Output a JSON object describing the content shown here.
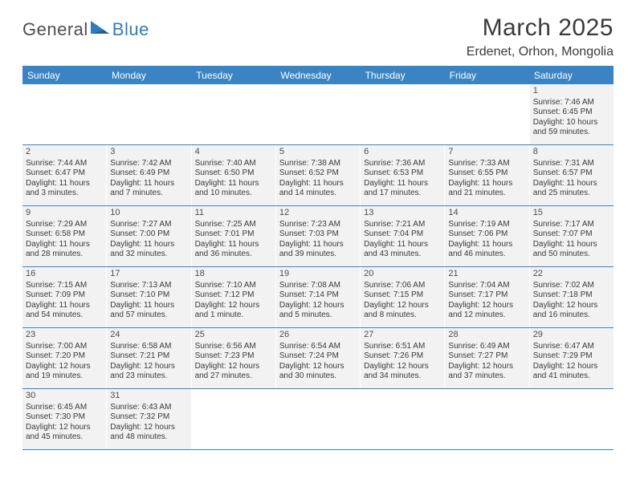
{
  "logo": {
    "text1": "General",
    "text2": "Blue"
  },
  "title": "March 2025",
  "location": "Erdenet, Orhon, Mongolia",
  "days_of_week": [
    "Sunday",
    "Monday",
    "Tuesday",
    "Wednesday",
    "Thursday",
    "Friday",
    "Saturday"
  ],
  "colors": {
    "header_bg": "#3b84c4",
    "header_text": "#ffffff",
    "cell_bg": "#f2f2f2",
    "divider": "#3b84c4",
    "text": "#3a3a3a",
    "logo_gray": "#4d4d4d",
    "logo_blue": "#2f7bbf"
  },
  "weeks": [
    [
      {
        "empty": true
      },
      {
        "empty": true
      },
      {
        "empty": true
      },
      {
        "empty": true
      },
      {
        "empty": true
      },
      {
        "empty": true
      },
      {
        "num": "1",
        "sunrise": "Sunrise: 7:46 AM",
        "sunset": "Sunset: 6:45 PM",
        "daylight": "Daylight: 10 hours and 59 minutes."
      }
    ],
    [
      {
        "num": "2",
        "sunrise": "Sunrise: 7:44 AM",
        "sunset": "Sunset: 6:47 PM",
        "daylight": "Daylight: 11 hours and 3 minutes."
      },
      {
        "num": "3",
        "sunrise": "Sunrise: 7:42 AM",
        "sunset": "Sunset: 6:49 PM",
        "daylight": "Daylight: 11 hours and 7 minutes."
      },
      {
        "num": "4",
        "sunrise": "Sunrise: 7:40 AM",
        "sunset": "Sunset: 6:50 PM",
        "daylight": "Daylight: 11 hours and 10 minutes."
      },
      {
        "num": "5",
        "sunrise": "Sunrise: 7:38 AM",
        "sunset": "Sunset: 6:52 PM",
        "daylight": "Daylight: 11 hours and 14 minutes."
      },
      {
        "num": "6",
        "sunrise": "Sunrise: 7:36 AM",
        "sunset": "Sunset: 6:53 PM",
        "daylight": "Daylight: 11 hours and 17 minutes."
      },
      {
        "num": "7",
        "sunrise": "Sunrise: 7:33 AM",
        "sunset": "Sunset: 6:55 PM",
        "daylight": "Daylight: 11 hours and 21 minutes."
      },
      {
        "num": "8",
        "sunrise": "Sunrise: 7:31 AM",
        "sunset": "Sunset: 6:57 PM",
        "daylight": "Daylight: 11 hours and 25 minutes."
      }
    ],
    [
      {
        "num": "9",
        "sunrise": "Sunrise: 7:29 AM",
        "sunset": "Sunset: 6:58 PM",
        "daylight": "Daylight: 11 hours and 28 minutes."
      },
      {
        "num": "10",
        "sunrise": "Sunrise: 7:27 AM",
        "sunset": "Sunset: 7:00 PM",
        "daylight": "Daylight: 11 hours and 32 minutes."
      },
      {
        "num": "11",
        "sunrise": "Sunrise: 7:25 AM",
        "sunset": "Sunset: 7:01 PM",
        "daylight": "Daylight: 11 hours and 36 minutes."
      },
      {
        "num": "12",
        "sunrise": "Sunrise: 7:23 AM",
        "sunset": "Sunset: 7:03 PM",
        "daylight": "Daylight: 11 hours and 39 minutes."
      },
      {
        "num": "13",
        "sunrise": "Sunrise: 7:21 AM",
        "sunset": "Sunset: 7:04 PM",
        "daylight": "Daylight: 11 hours and 43 minutes."
      },
      {
        "num": "14",
        "sunrise": "Sunrise: 7:19 AM",
        "sunset": "Sunset: 7:06 PM",
        "daylight": "Daylight: 11 hours and 46 minutes."
      },
      {
        "num": "15",
        "sunrise": "Sunrise: 7:17 AM",
        "sunset": "Sunset: 7:07 PM",
        "daylight": "Daylight: 11 hours and 50 minutes."
      }
    ],
    [
      {
        "num": "16",
        "sunrise": "Sunrise: 7:15 AM",
        "sunset": "Sunset: 7:09 PM",
        "daylight": "Daylight: 11 hours and 54 minutes."
      },
      {
        "num": "17",
        "sunrise": "Sunrise: 7:13 AM",
        "sunset": "Sunset: 7:10 PM",
        "daylight": "Daylight: 11 hours and 57 minutes."
      },
      {
        "num": "18",
        "sunrise": "Sunrise: 7:10 AM",
        "sunset": "Sunset: 7:12 PM",
        "daylight": "Daylight: 12 hours and 1 minute."
      },
      {
        "num": "19",
        "sunrise": "Sunrise: 7:08 AM",
        "sunset": "Sunset: 7:14 PM",
        "daylight": "Daylight: 12 hours and 5 minutes."
      },
      {
        "num": "20",
        "sunrise": "Sunrise: 7:06 AM",
        "sunset": "Sunset: 7:15 PM",
        "daylight": "Daylight: 12 hours and 8 minutes."
      },
      {
        "num": "21",
        "sunrise": "Sunrise: 7:04 AM",
        "sunset": "Sunset: 7:17 PM",
        "daylight": "Daylight: 12 hours and 12 minutes."
      },
      {
        "num": "22",
        "sunrise": "Sunrise: 7:02 AM",
        "sunset": "Sunset: 7:18 PM",
        "daylight": "Daylight: 12 hours and 16 minutes."
      }
    ],
    [
      {
        "num": "23",
        "sunrise": "Sunrise: 7:00 AM",
        "sunset": "Sunset: 7:20 PM",
        "daylight": "Daylight: 12 hours and 19 minutes."
      },
      {
        "num": "24",
        "sunrise": "Sunrise: 6:58 AM",
        "sunset": "Sunset: 7:21 PM",
        "daylight": "Daylight: 12 hours and 23 minutes."
      },
      {
        "num": "25",
        "sunrise": "Sunrise: 6:56 AM",
        "sunset": "Sunset: 7:23 PM",
        "daylight": "Daylight: 12 hours and 27 minutes."
      },
      {
        "num": "26",
        "sunrise": "Sunrise: 6:54 AM",
        "sunset": "Sunset: 7:24 PM",
        "daylight": "Daylight: 12 hours and 30 minutes."
      },
      {
        "num": "27",
        "sunrise": "Sunrise: 6:51 AM",
        "sunset": "Sunset: 7:26 PM",
        "daylight": "Daylight: 12 hours and 34 minutes."
      },
      {
        "num": "28",
        "sunrise": "Sunrise: 6:49 AM",
        "sunset": "Sunset: 7:27 PM",
        "daylight": "Daylight: 12 hours and 37 minutes."
      },
      {
        "num": "29",
        "sunrise": "Sunrise: 6:47 AM",
        "sunset": "Sunset: 7:29 PM",
        "daylight": "Daylight: 12 hours and 41 minutes."
      }
    ],
    [
      {
        "num": "30",
        "sunrise": "Sunrise: 6:45 AM",
        "sunset": "Sunset: 7:30 PM",
        "daylight": "Daylight: 12 hours and 45 minutes."
      },
      {
        "num": "31",
        "sunrise": "Sunrise: 6:43 AM",
        "sunset": "Sunset: 7:32 PM",
        "daylight": "Daylight: 12 hours and 48 minutes."
      },
      {
        "empty": true
      },
      {
        "empty": true
      },
      {
        "empty": true
      },
      {
        "empty": true
      },
      {
        "empty": true
      }
    ]
  ]
}
